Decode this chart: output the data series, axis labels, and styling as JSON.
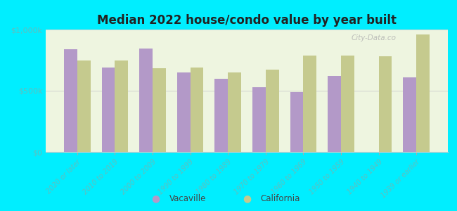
{
  "title": "Median 2022 house/condo value by year built",
  "categories": [
    "2020 or later",
    "2010 to 2019",
    "2000 to 2009",
    "1990 to 1999",
    "1980 to 1989",
    "1970 to 1979",
    "1960 to 1969",
    "1950 to 1959",
    "1940 to 1949",
    "1939 or earlier"
  ],
  "vacaville": [
    840000,
    690000,
    845000,
    648000,
    600000,
    530000,
    490000,
    620000,
    0,
    610000
  ],
  "california": [
    745000,
    750000,
    685000,
    690000,
    650000,
    675000,
    785000,
    785000,
    780000,
    960000
  ],
  "vacaville_color": "#b399c8",
  "california_color": "#c5ca8e",
  "background_outer": "#00eeff",
  "background_inner": "#eef5e0",
  "ylim": [
    0,
    1000000
  ],
  "ytick_labels": [
    "$0",
    "$500k",
    "$1,000k"
  ],
  "legend_vacaville": "Vacaville",
  "legend_california": "California",
  "bar_width": 0.35,
  "tick_color": "#5fbfbf",
  "title_color": "#222222",
  "watermark": "City-Data.co"
}
